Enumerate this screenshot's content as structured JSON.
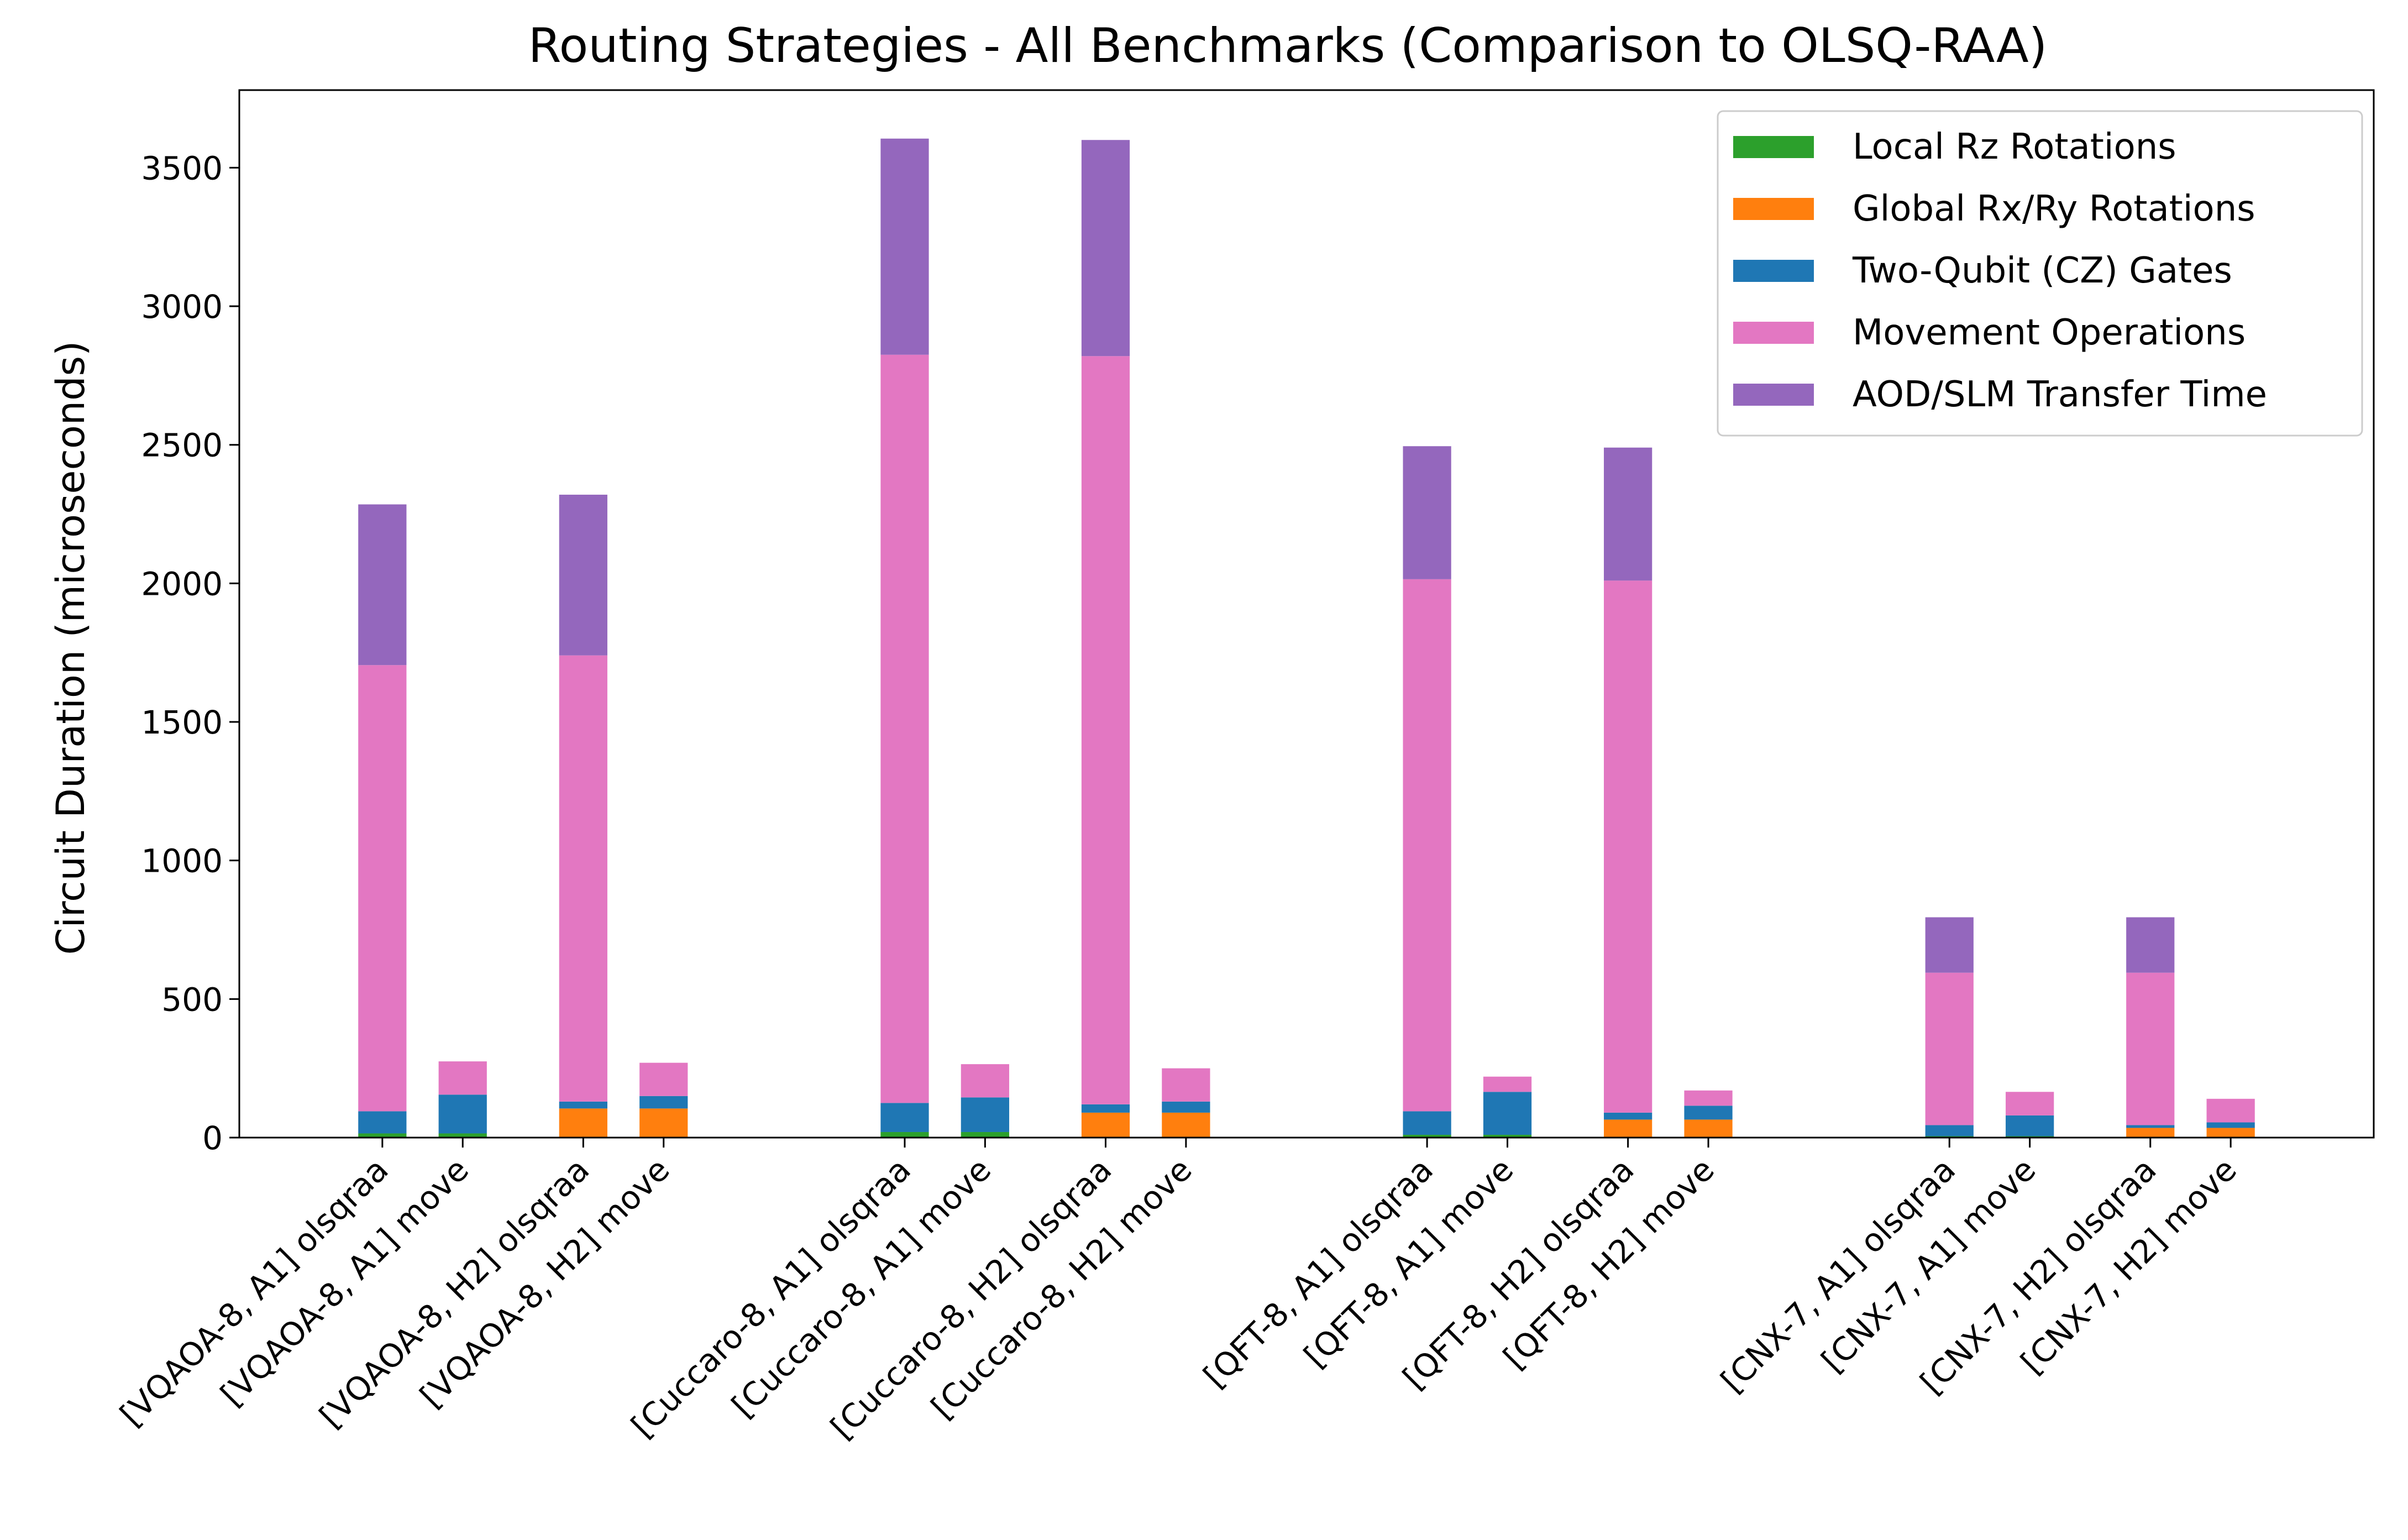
{
  "chart_data": {
    "type": "bar",
    "stacked": true,
    "title": "Routing Strategies - All Benchmarks (Comparison to OLSQ-RAA)",
    "xlabel": "",
    "ylabel": "Circuit Duration (microseconds)",
    "ylim": [
      0,
      3780
    ],
    "yticks": [
      0,
      500,
      1000,
      1500,
      2000,
      2500,
      3000,
      3500
    ],
    "grid": false,
    "legend_position": "top-right",
    "categories": [
      "[VQAOA-8, A1] olsqraa",
      "[VQAOA-8, A1] move",
      "[VQAOA-8, H2] olsqraa",
      "[VQAOA-8, H2] move",
      "[Cuccaro-8, A1] olsqraa",
      "[Cuccaro-8, A1] move",
      "[Cuccaro-8, H2] olsqraa",
      "[Cuccaro-8, H2] move",
      "[QFT-8, A1] olsqraa",
      "[QFT-8, A1] move",
      "[QFT-8, H2] olsqraa",
      "[QFT-8, H2] move",
      "[CNX-7, A1] olsqraa",
      "[CNX-7, A1] move",
      "[CNX-7, H2] olsqraa",
      "[CNX-7, H2] move"
    ],
    "x": [
      0,
      1,
      2.5,
      3.5,
      6.5,
      7.5,
      9,
      10,
      13,
      14,
      15.5,
      16.5,
      19.5,
      20.5,
      22,
      23
    ],
    "series": [
      {
        "name": "Local Rz Rotations",
        "color": "#2ca02c",
        "values": [
          15,
          15,
          0,
          0,
          20,
          20,
          0,
          0,
          10,
          10,
          0,
          0,
          5,
          5,
          0,
          0
        ]
      },
      {
        "name": "Global Rx/Ry Rotations",
        "color": "#ff7f0e",
        "values": [
          0,
          0,
          105,
          105,
          0,
          0,
          90,
          90,
          0,
          0,
          65,
          65,
          0,
          0,
          35,
          35
        ]
      },
      {
        "name": "Two-Qubit (CZ) Gates",
        "color": "#1f77b4",
        "values": [
          80,
          140,
          25,
          45,
          105,
          125,
          30,
          40,
          85,
          155,
          25,
          50,
          40,
          75,
          10,
          20
        ]
      },
      {
        "name": "Movement Operations",
        "color": "#e377c2",
        "values": [
          1610,
          120,
          1610,
          120,
          2700,
          120,
          2700,
          120,
          1920,
          55,
          1920,
          55,
          550,
          85,
          550,
          85
        ]
      },
      {
        "name": "AOD/SLM Transfer Time",
        "color": "#9467bd",
        "values": [
          580,
          0,
          580,
          0,
          780,
          0,
          780,
          0,
          480,
          0,
          480,
          0,
          200,
          0,
          200,
          0
        ]
      }
    ]
  }
}
